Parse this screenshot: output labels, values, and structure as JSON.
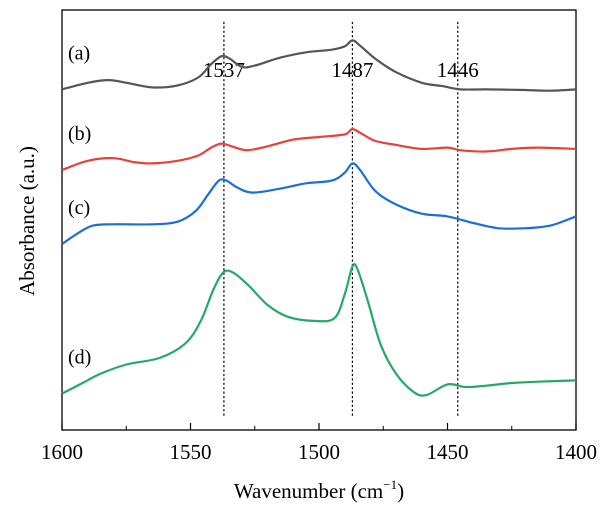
{
  "chart_data": {
    "type": "line",
    "xlabel": "Wavenumber (cm",
    "xlabel_sup": "−1",
    "xlabel_suffix": ")",
    "ylabel": "Absorbance (a.u.)",
    "xlim": [
      1600,
      1400
    ],
    "x_reversed": true,
    "y_ticks_shown": false,
    "grid": false,
    "legend": "none",
    "xticks": [
      1600,
      1550,
      1500,
      1450,
      1400
    ],
    "reference_lines": [
      {
        "label": "1537",
        "x": 1537
      },
      {
        "label": "1487",
        "x": 1487
      },
      {
        "label": "1446",
        "x": 1446
      }
    ],
    "series": [
      {
        "name": "(a)",
        "color": "#555555",
        "points": [
          [
            1600,
            2.4
          ],
          [
            1590,
            2.5
          ],
          [
            1582,
            2.54
          ],
          [
            1575,
            2.5
          ],
          [
            1565,
            2.43
          ],
          [
            1555,
            2.46
          ],
          [
            1547,
            2.58
          ],
          [
            1542,
            2.78
          ],
          [
            1538,
            2.9
          ],
          [
            1535,
            2.87
          ],
          [
            1530,
            2.74
          ],
          [
            1525,
            2.76
          ],
          [
            1515,
            2.88
          ],
          [
            1505,
            2.96
          ],
          [
            1495,
            3.0
          ],
          [
            1490,
            3.05
          ],
          [
            1487,
            3.14
          ],
          [
            1484,
            3.06
          ],
          [
            1478,
            2.86
          ],
          [
            1470,
            2.66
          ],
          [
            1460,
            2.5
          ],
          [
            1452,
            2.45
          ],
          [
            1445,
            2.4
          ],
          [
            1435,
            2.4
          ],
          [
            1420,
            2.39
          ],
          [
            1410,
            2.38
          ],
          [
            1400,
            2.4
          ]
        ]
      },
      {
        "name": "(b)",
        "color": "#e8413c",
        "points": [
          [
            1600,
            1.18
          ],
          [
            1590,
            1.32
          ],
          [
            1580,
            1.36
          ],
          [
            1572,
            1.3
          ],
          [
            1565,
            1.28
          ],
          [
            1555,
            1.32
          ],
          [
            1547,
            1.4
          ],
          [
            1542,
            1.52
          ],
          [
            1538,
            1.58
          ],
          [
            1534,
            1.54
          ],
          [
            1528,
            1.48
          ],
          [
            1520,
            1.54
          ],
          [
            1510,
            1.64
          ],
          [
            1500,
            1.68
          ],
          [
            1490,
            1.72
          ],
          [
            1487,
            1.8
          ],
          [
            1483,
            1.72
          ],
          [
            1478,
            1.62
          ],
          [
            1470,
            1.56
          ],
          [
            1460,
            1.5
          ],
          [
            1450,
            1.52
          ],
          [
            1445,
            1.48
          ],
          [
            1435,
            1.46
          ],
          [
            1425,
            1.5
          ],
          [
            1415,
            1.52
          ],
          [
            1400,
            1.5
          ]
        ]
      },
      {
        "name": "(c)",
        "color": "#1a6fd6",
        "points": [
          [
            1600,
            0.06
          ],
          [
            1594,
            0.22
          ],
          [
            1588,
            0.34
          ],
          [
            1580,
            0.36
          ],
          [
            1565,
            0.36
          ],
          [
            1555,
            0.4
          ],
          [
            1548,
            0.56
          ],
          [
            1543,
            0.82
          ],
          [
            1539,
            1.02
          ],
          [
            1536,
            1.02
          ],
          [
            1532,
            0.92
          ],
          [
            1526,
            0.84
          ],
          [
            1515,
            0.9
          ],
          [
            1505,
            0.98
          ],
          [
            1495,
            1.02
          ],
          [
            1490,
            1.14
          ],
          [
            1487,
            1.28
          ],
          [
            1484,
            1.18
          ],
          [
            1478,
            0.86
          ],
          [
            1470,
            0.66
          ],
          [
            1460,
            0.52
          ],
          [
            1450,
            0.48
          ],
          [
            1440,
            0.38
          ],
          [
            1430,
            0.3
          ],
          [
            1420,
            0.3
          ],
          [
            1410,
            0.34
          ],
          [
            1400,
            0.48
          ]
        ]
      },
      {
        "name": "(d)",
        "color": "#26a866",
        "points": [
          [
            1600,
            -2.2
          ],
          [
            1592,
            -2.04
          ],
          [
            1585,
            -1.9
          ],
          [
            1575,
            -1.76
          ],
          [
            1562,
            -1.66
          ],
          [
            1552,
            -1.44
          ],
          [
            1546,
            -1.1
          ],
          [
            1541,
            -0.62
          ],
          [
            1537,
            -0.36
          ],
          [
            1533,
            -0.38
          ],
          [
            1527,
            -0.58
          ],
          [
            1520,
            -0.86
          ],
          [
            1512,
            -1.04
          ],
          [
            1502,
            -1.1
          ],
          [
            1494,
            -1.06
          ],
          [
            1490,
            -0.7
          ],
          [
            1487,
            -0.28
          ],
          [
            1485,
            -0.32
          ],
          [
            1481,
            -0.8
          ],
          [
            1476,
            -1.46
          ],
          [
            1470,
            -1.9
          ],
          [
            1463,
            -2.18
          ],
          [
            1458,
            -2.22
          ],
          [
            1450,
            -2.06
          ],
          [
            1443,
            -2.1
          ],
          [
            1435,
            -2.08
          ],
          [
            1425,
            -2.04
          ],
          [
            1415,
            -2.02
          ],
          [
            1400,
            -2.0
          ]
        ]
      }
    ]
  }
}
